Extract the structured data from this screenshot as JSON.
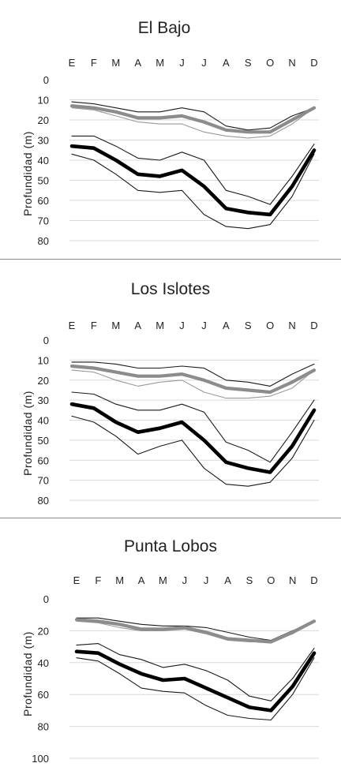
{
  "charts": [
    {
      "type": "line",
      "title": "El Bajo",
      "ylabel": "Profundidad (m)",
      "months": [
        "E",
        "F",
        "M",
        "A",
        "M",
        "J",
        "J",
        "A",
        "S",
        "O",
        "N",
        "D"
      ],
      "yticks": [
        0,
        10,
        20,
        30,
        40,
        50,
        60,
        70,
        80
      ],
      "ylim": [
        0,
        80
      ],
      "series": [
        {
          "role": "upper-mean",
          "color": "#8c8c8c",
          "values": [
            13,
            14,
            16,
            19,
            19,
            18,
            21,
            25,
            26,
            26,
            20,
            14
          ]
        },
        {
          "role": "upper-min",
          "color": "#1a1a1a",
          "values": [
            11,
            12,
            14,
            16,
            16,
            14,
            16,
            23,
            25,
            24,
            18,
            14
          ]
        },
        {
          "role": "upper-max",
          "color": "#9a9a9a",
          "values": [
            14,
            15,
            18,
            21,
            22,
            22,
            26,
            28,
            29,
            28,
            22,
            14
          ]
        },
        {
          "role": "lower-mean",
          "color": "#000000",
          "values": [
            33,
            34,
            40,
            47,
            48,
            45,
            53,
            64,
            66,
            67,
            53,
            35
          ]
        },
        {
          "role": "lower-min",
          "color": "#1a1a1a",
          "values": [
            28,
            28,
            33,
            39,
            40,
            36,
            40,
            55,
            58,
            62,
            48,
            32
          ]
        },
        {
          "role": "lower-max",
          "color": "#1a1a1a",
          "values": [
            37,
            40,
            47,
            55,
            56,
            55,
            67,
            73,
            74,
            72,
            58,
            37
          ]
        }
      ]
    },
    {
      "type": "line",
      "title": "Los Islotes",
      "ylabel": "Profundidad (m)",
      "months": [
        "E",
        "F",
        "M",
        "A",
        "M",
        "J",
        "J",
        "A",
        "S",
        "O",
        "N",
        "D"
      ],
      "yticks": [
        0,
        10,
        20,
        30,
        40,
        50,
        60,
        70,
        80
      ],
      "ylim": [
        0,
        80
      ],
      "series": [
        {
          "role": "upper-mean",
          "color": "#8c8c8c",
          "values": [
            13,
            14,
            16,
            18,
            18,
            17,
            20,
            24,
            25,
            26,
            21,
            15
          ]
        },
        {
          "role": "upper-min",
          "color": "#1a1a1a",
          "values": [
            11,
            11,
            12,
            14,
            14,
            13,
            14,
            20,
            21,
            23,
            17,
            12
          ]
        },
        {
          "role": "upper-max",
          "color": "#9a9a9a",
          "values": [
            15,
            16,
            20,
            23,
            21,
            20,
            26,
            29,
            29,
            28,
            24,
            15
          ]
        },
        {
          "role": "lower-mean",
          "color": "#000000",
          "values": [
            32,
            34,
            41,
            46,
            44,
            41,
            50,
            61,
            64,
            66,
            53,
            35
          ]
        },
        {
          "role": "lower-min",
          "color": "#1a1a1a",
          "values": [
            26,
            27,
            32,
            35,
            35,
            32,
            36,
            51,
            55,
            61,
            46,
            30
          ]
        },
        {
          "role": "lower-max",
          "color": "#1a1a1a",
          "values": [
            38,
            41,
            48,
            57,
            53,
            50,
            64,
            72,
            73,
            71,
            59,
            40
          ]
        }
      ]
    },
    {
      "type": "line",
      "title": "Punta Lobos",
      "ylabel": "Profundidad (m)",
      "months": [
        "E",
        "F",
        "M",
        "A",
        "M",
        "J",
        "J",
        "A",
        "S",
        "O",
        "N",
        "D"
      ],
      "yticks": [
        0,
        20,
        40,
        60,
        80,
        100
      ],
      "ylim": [
        0,
        100
      ],
      "series": [
        {
          "role": "upper-mean",
          "color": "#8c8c8c",
          "values": [
            13,
            14,
            16,
            19,
            19,
            18,
            21,
            25,
            26,
            27,
            21,
            14
          ]
        },
        {
          "role": "upper-min",
          "color": "#1a1a1a",
          "values": [
            12,
            12,
            14,
            16,
            17,
            17,
            18,
            21,
            24,
            26,
            20,
            14
          ]
        },
        {
          "role": "upper-max",
          "color": "#9a9a9a",
          "values": [
            14,
            15,
            18,
            20,
            20,
            19,
            22,
            26,
            27,
            27,
            22,
            14
          ]
        },
        {
          "role": "lower-mean",
          "color": "#000000",
          "values": [
            33,
            34,
            41,
            47,
            51,
            50,
            56,
            62,
            68,
            70,
            55,
            34
          ]
        },
        {
          "role": "lower-min",
          "color": "#1a1a1a",
          "values": [
            29,
            28,
            35,
            38,
            43,
            41,
            45,
            51,
            61,
            64,
            50,
            31
          ]
        },
        {
          "role": "lower-max",
          "color": "#1a1a1a",
          "values": [
            37,
            39,
            47,
            56,
            58,
            59,
            67,
            73,
            75,
            76,
            60,
            37
          ]
        }
      ]
    }
  ]
}
